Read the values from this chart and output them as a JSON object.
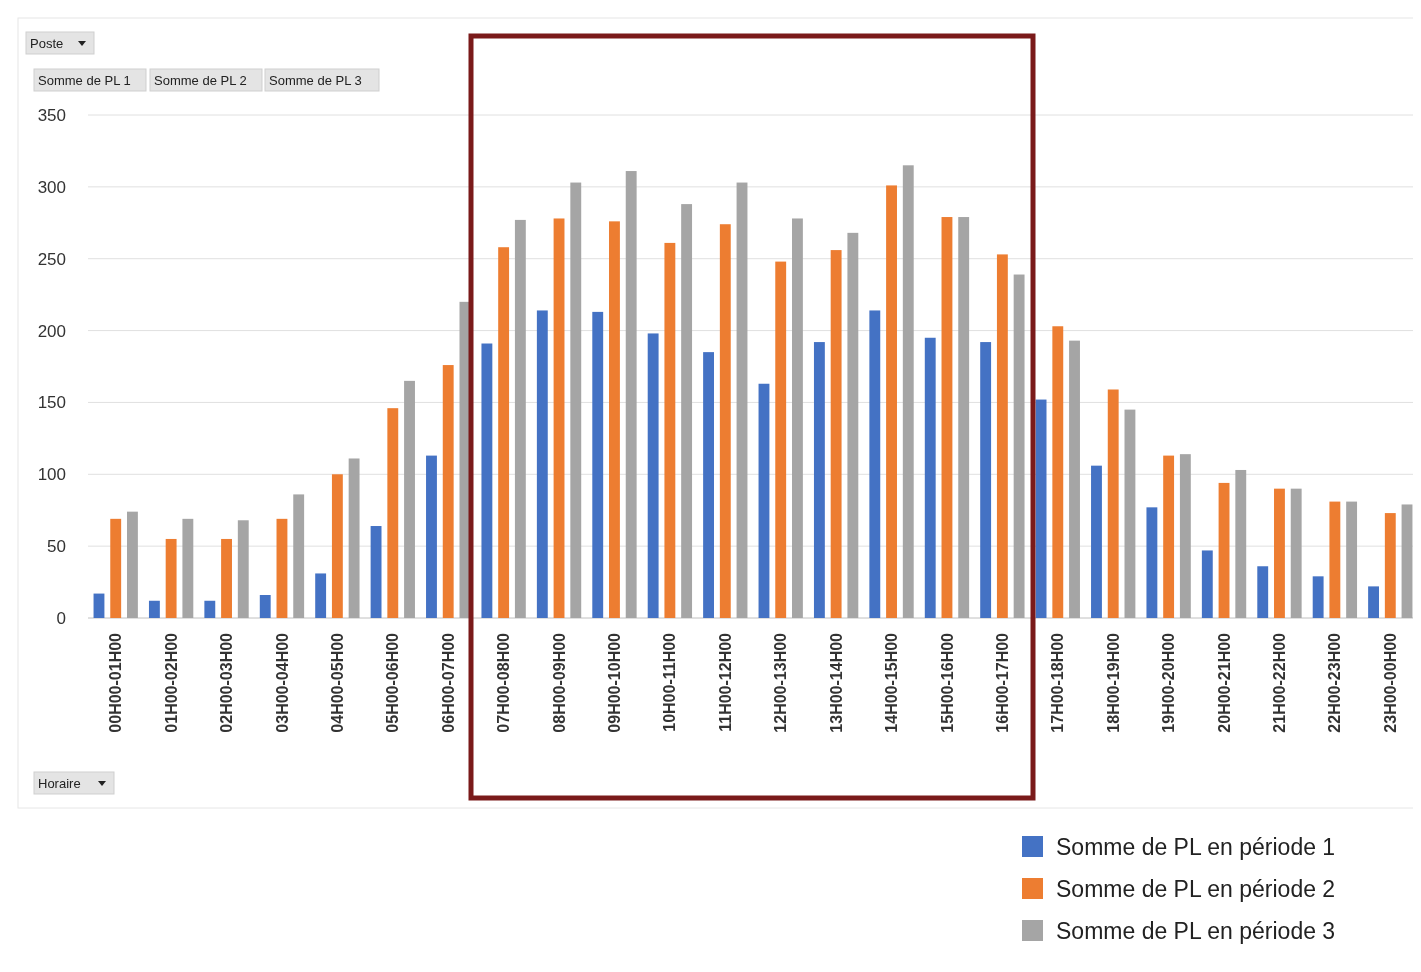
{
  "chart_data": {
    "type": "bar",
    "categories": [
      "00H00-01H00",
      "01H00-02H00",
      "02H00-03H00",
      "03H00-04H00",
      "04H00-05H00",
      "05H00-06H00",
      "06H00-07H00",
      "07H00-08H00",
      "08H00-09H00",
      "09H00-10H00",
      "10H00-11H00",
      "11H00-12H00",
      "12H00-13H00",
      "13H00-14H00",
      "14H00-15H00",
      "15H00-16H00",
      "16H00-17H00",
      "17H00-18H00",
      "18H00-19H00",
      "19H00-20H00",
      "20H00-21H00",
      "21H00-22H00",
      "22H00-23H00",
      "23H00-00H00"
    ],
    "series": [
      {
        "name": "Somme de PL en période 1",
        "color": "#4472c4",
        "values": [
          17,
          12,
          12,
          16,
          31,
          64,
          113,
          191,
          214,
          213,
          198,
          185,
          163,
          192,
          214,
          195,
          192,
          152,
          106,
          77,
          47,
          36,
          29,
          22
        ]
      },
      {
        "name": "Somme de PL en période 2",
        "color": "#ed7d31",
        "values": [
          69,
          55,
          55,
          69,
          100,
          146,
          176,
          258,
          278,
          276,
          261,
          274,
          248,
          256,
          301,
          279,
          253,
          203,
          159,
          113,
          94,
          90,
          81,
          73
        ]
      },
      {
        "name": "Somme de PL en période 3",
        "color": "#a5a5a5",
        "values": [
          74,
          69,
          68,
          86,
          111,
          165,
          220,
          277,
          303,
          311,
          288,
          303,
          278,
          268,
          315,
          279,
          239,
          193,
          145,
          114,
          103,
          90,
          81,
          79
        ]
      }
    ],
    "ylim": [
      0,
      350
    ],
    "yticks": [
      0,
      50,
      100,
      150,
      200,
      250,
      300,
      350
    ],
    "grid": "y",
    "legend": "bottom right",
    "annotations": [
      "Poste",
      "Somme de PL 1",
      "Somme de PL 2",
      "Somme de PL 3",
      "Horaire"
    ]
  }
}
